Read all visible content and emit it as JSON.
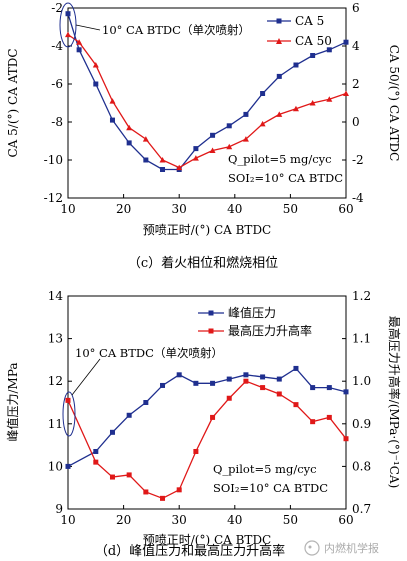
{
  "chart_data": [
    {
      "type": "line",
      "caption": "（c）着火相位和燃烧相位",
      "xlabel": "预喷正时/(°) CA BTDC",
      "ylabel_left": "CA 5/(°) CA ATDC",
      "ylabel_right": "CA 50/(°) CA ATDC",
      "xlim": [
        10,
        60
      ],
      "ylim_left": [
        -12,
        -2
      ],
      "ylim_right": [
        -4,
        6
      ],
      "xticks": [
        "10",
        "20",
        "30",
        "40",
        "50",
        "60"
      ],
      "yticks_left": [
        "-2",
        "-4",
        "-6",
        "-8",
        "-10",
        "-12"
      ],
      "yticks_right": [
        "6",
        "4",
        "2",
        "0",
        "-2",
        "-4"
      ],
      "callout": "10° CA BTDC（单次喷射）",
      "conditions": [
        "Q_pilot=5 mg/cyc",
        "SOI₂=10° CA BTDC"
      ],
      "series": [
        {
          "name": "CA 5",
          "axis": "left",
          "color": "#1f2f8f",
          "marker": "square",
          "x": [
            10,
            12,
            15,
            18,
            21,
            24,
            27,
            30,
            33,
            36,
            39,
            42,
            45,
            48,
            51,
            54,
            57,
            60
          ],
          "y": [
            -2.3,
            -4.2,
            -6.0,
            -7.9,
            -9.1,
            -10.0,
            -10.5,
            -10.5,
            -9.4,
            -8.7,
            -8.2,
            -7.6,
            -6.5,
            -5.6,
            -5.0,
            -4.5,
            -4.2,
            -3.8
          ]
        },
        {
          "name": "CA 50",
          "axis": "right",
          "color": "#e01818",
          "marker": "triangle",
          "x": [
            10,
            12,
            15,
            18,
            21,
            24,
            27,
            30,
            33,
            36,
            39,
            42,
            45,
            48,
            51,
            54,
            57,
            60
          ],
          "y": [
            4.6,
            4.2,
            3.0,
            1.1,
            -0.3,
            -0.9,
            -2.0,
            -2.4,
            -1.9,
            -1.5,
            -1.3,
            -0.9,
            -0.1,
            0.4,
            0.7,
            1.0,
            1.2,
            1.5
          ]
        }
      ]
    },
    {
      "type": "line",
      "caption": "（d）峰值压力和最高压力升高率",
      "xlabel": "预喷正时/(°) CA BTDC",
      "ylabel_left": "峰值压力/MPa",
      "ylabel_right": "最高压力升高率/(MPa·(°)⁻¹CA)",
      "xlim": [
        10,
        60
      ],
      "ylim_left": [
        9,
        14
      ],
      "ylim_right": [
        0.7,
        1.2
      ],
      "xticks": [
        "10",
        "20",
        "30",
        "40",
        "50",
        "60"
      ],
      "yticks_left": [
        "14",
        "13",
        "12",
        "11",
        "10",
        "9"
      ],
      "yticks_right": [
        "1.2",
        "1.1",
        "1.0",
        "0.9",
        "0.8",
        "0.7"
      ],
      "callout": "10° CA BTDC（单次喷射）",
      "conditions": [
        "Q_pilot=5 mg/cyc",
        "SOI₂=10° CA BTDC"
      ],
      "series": [
        {
          "name": "峰值压力",
          "axis": "left",
          "color": "#1f2f8f",
          "marker": "square",
          "x": [
            10,
            15,
            18,
            21,
            24,
            27,
            30,
            33,
            36,
            39,
            42,
            45,
            48,
            51,
            54,
            57,
            60
          ],
          "y": [
            10.0,
            10.35,
            10.8,
            11.2,
            11.5,
            11.9,
            12.15,
            11.95,
            11.95,
            12.05,
            12.15,
            12.1,
            12.05,
            12.3,
            11.85,
            11.85,
            11.75
          ]
        },
        {
          "name": "最高压力升高率",
          "axis": "right",
          "color": "#e01818",
          "marker": "square",
          "x": [
            10,
            15,
            18,
            21,
            24,
            27,
            30,
            33,
            36,
            39,
            42,
            45,
            48,
            51,
            54,
            57,
            60
          ],
          "y": [
            0.955,
            0.81,
            0.775,
            0.78,
            0.74,
            0.725,
            0.745,
            0.835,
            0.915,
            0.96,
            1.0,
            0.985,
            0.97,
            0.945,
            0.905,
            0.915,
            0.865
          ]
        }
      ]
    }
  ],
  "watermark": "内燃机学报"
}
